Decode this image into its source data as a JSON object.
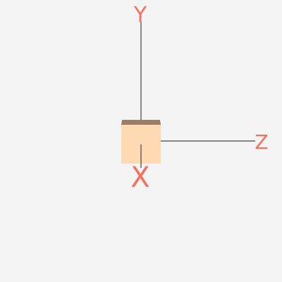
{
  "scene": {
    "background_color": "#f4f4f4",
    "axis_line_color": "#444444",
    "label_color": "#f5715e",
    "axes": {
      "y": {
        "label": "Y"
      },
      "z": {
        "label": "Z"
      },
      "x": {
        "label": "X"
      }
    },
    "cube": {
      "front_color": "#ffd9b1",
      "top_color": "#9b7c68"
    }
  }
}
